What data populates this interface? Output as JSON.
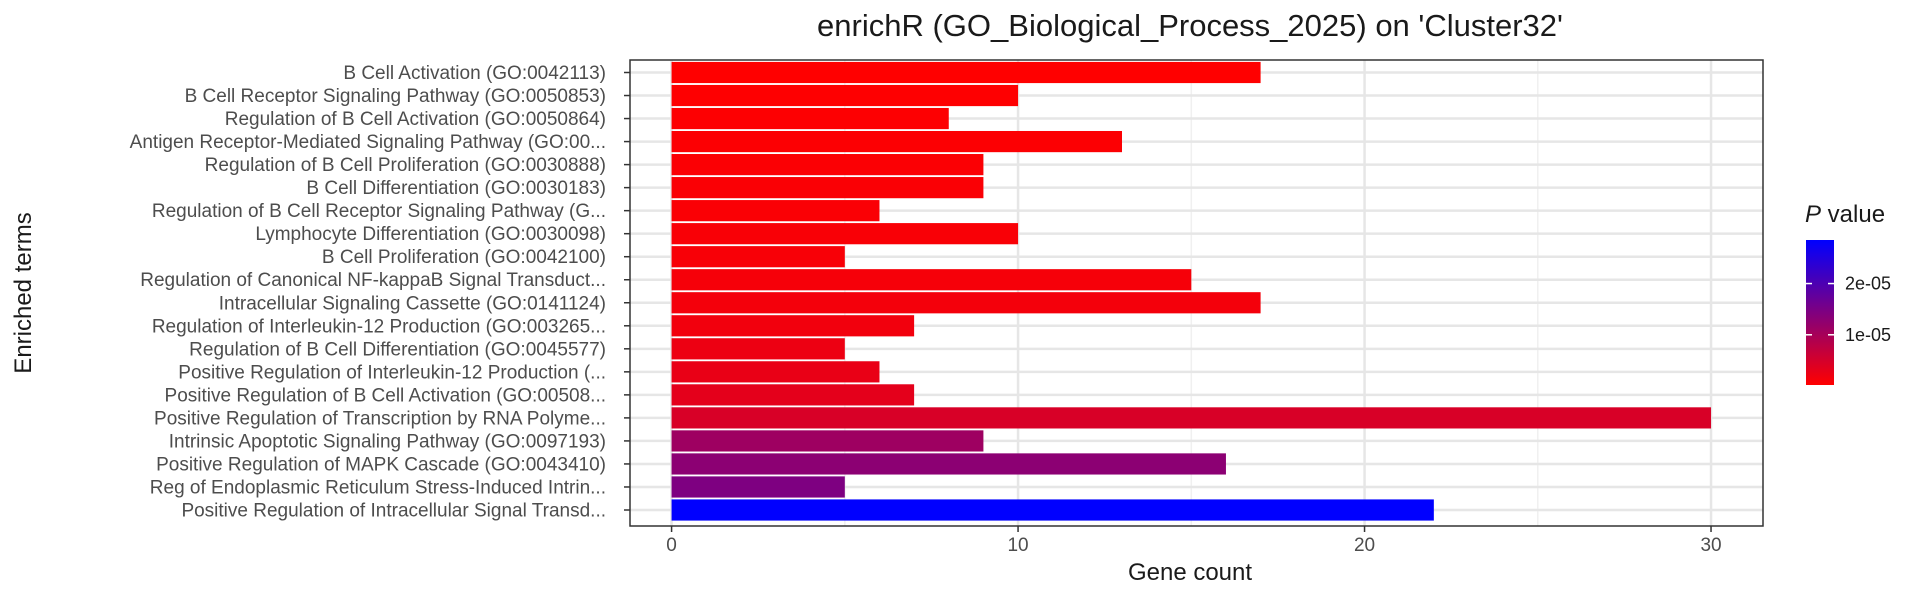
{
  "chart_data": {
    "type": "bar",
    "orientation": "horizontal",
    "title": "enrichR (GO_Biological_Process_2025) on 'Cluster32'",
    "xlabel": "Gene count",
    "ylabel": "Enriched terms",
    "xlim": [
      -1.2,
      31.5
    ],
    "x_ticks": [
      0,
      10,
      20,
      30
    ],
    "grid": true,
    "legend": {
      "title_italic": "P",
      "title_rest": " value",
      "position": "right",
      "low_color": "#ff0000",
      "high_color": "#0000ff",
      "range": [
        2e-07,
        2.85e-05
      ],
      "ticks": [
        {
          "value": 1e-05,
          "label": "1e-05"
        },
        {
          "value": 2e-05,
          "label": "2e-05"
        }
      ]
    },
    "categories": [
      "B Cell Activation (GO:0042113)",
      "B Cell Receptor Signaling Pathway (GO:0050853)",
      "Regulation of B Cell Activation (GO:0050864)",
      "Antigen Receptor-Mediated Signaling Pathway (GO:00...",
      "Regulation of B Cell Proliferation (GO:0030888)",
      "B Cell Differentiation (GO:0030183)",
      "Regulation of B Cell Receptor Signaling Pathway (G...",
      "Lymphocyte Differentiation (GO:0030098)",
      "B Cell Proliferation (GO:0042100)",
      "Regulation of Canonical NF-kappaB Signal Transduct...",
      "Intracellular Signaling Cassette (GO:0141124)",
      "Regulation of Interleukin-12 Production (GO:003265...",
      "Regulation of B Cell Differentiation (GO:0045577)",
      "Positive Regulation of Interleukin-12 Production (...",
      "Positive Regulation of B Cell Activation (GO:00508...",
      "Positive Regulation of Transcription by RNA Polyme...",
      "Intrinsic Apoptotic Signaling Pathway (GO:0097193)",
      "Positive Regulation of MAPK Cascade (GO:0043410)",
      "Reg of Endoplasmic Reticulum Stress-Induced Intrin...",
      "Positive Regulation of Intracellular Signal Transd..."
    ],
    "values": [
      17,
      10,
      8,
      13,
      9,
      9,
      6,
      10,
      5,
      15,
      17,
      7,
      5,
      6,
      7,
      30,
      9,
      16,
      5,
      22
    ],
    "p_values": [
      2e-07,
      3e-07,
      4e-07,
      5e-07,
      6e-07,
      7e-07,
      8e-07,
      9e-07,
      1e-06,
      1.2e-06,
      1.4e-06,
      1.6e-06,
      2.2e-06,
      2.6e-06,
      3.2e-06,
      4.5e-06,
      1.1e-05,
      1.3e-05,
      1.45e-05,
      2.85e-05
    ]
  }
}
